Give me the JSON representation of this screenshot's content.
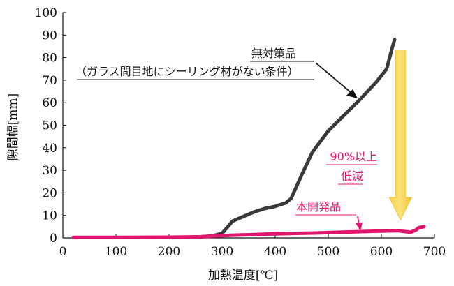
{
  "chart_data": {
    "type": "line",
    "xlabel": "加熱温度[℃]",
    "ylabel": "隙間幅[mm]",
    "xlim": [
      0,
      700
    ],
    "ylim": [
      0,
      100
    ],
    "xticks": [
      0,
      100,
      200,
      300,
      400,
      500,
      600,
      700
    ],
    "yticks": [
      0,
      10,
      20,
      30,
      40,
      50,
      60,
      70,
      80,
      90,
      100
    ],
    "grid": false,
    "series": [
      {
        "name": "無対策品",
        "color": "#3a3a3a",
        "x": [
          20,
          100,
          200,
          250,
          280,
          300,
          320,
          340,
          360,
          380,
          400,
          420,
          430,
          450,
          470,
          500,
          530,
          560,
          590,
          610,
          620,
          625
        ],
        "y": [
          0.2,
          0.2,
          0.2,
          0.3,
          0.8,
          2,
          7.5,
          9.5,
          11.5,
          13,
          14,
          15.5,
          17.5,
          28,
          38,
          47.5,
          54.5,
          61.5,
          69,
          75,
          84,
          88
        ]
      },
      {
        "name": "本開発品",
        "color": "#e0156e",
        "x": [
          20,
          100,
          200,
          260,
          290,
          320,
          360,
          400,
          440,
          480,
          520,
          560,
          600,
          630,
          655,
          665,
          670,
          680
        ],
        "y": [
          0.2,
          0.2,
          0.3,
          0.5,
          0.9,
          1.2,
          1.5,
          1.8,
          2.0,
          2.2,
          2.5,
          2.8,
          3.0,
          3.2,
          2.5,
          3.5,
          4.5,
          5.0
        ]
      }
    ],
    "annotations": {
      "untreated_label": "無対策品",
      "untreated_condition": "（ガラス間目地にシーリング材がない条件）",
      "reduction_line1": "90%以上",
      "reduction_line2": "低減",
      "developed_label": "本開発品"
    },
    "reduction_arrow_color": "#f5c531"
  }
}
